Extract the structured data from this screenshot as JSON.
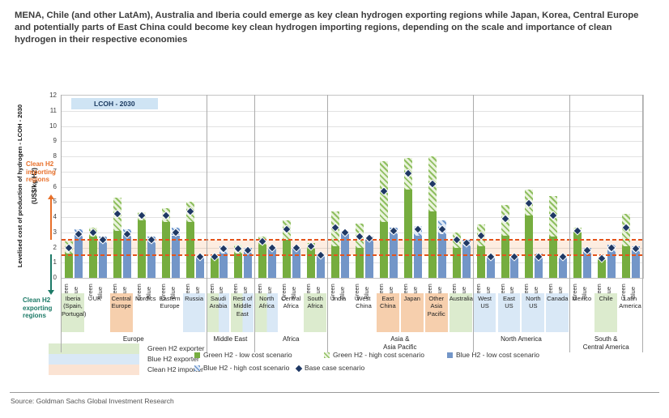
{
  "title": "MENA, Chile (and other LatAm), Australia and Iberia could emerge as key clean hydrogen exporting regions while Japan, Korea, Central Europe and potentially parts of East China could become key clean hydrogen importing regions, depending on the scale and importance of clean hydrogen in their respective economies",
  "source": "Source: Goldman Sachs Global Investment Research",
  "chip_label": "LCOH - 2030",
  "y_axis": {
    "title": "Levelised cost of production of hydrogen - LCOH - 2030",
    "subtitle": "(US$/kg H2)",
    "min": 0,
    "max": 12
  },
  "annotations": {
    "importing": "Clean H2\nimporting\nregions",
    "exporting": "Clean H2\nexporting\nregions"
  },
  "legend_left": [
    {
      "label": "Green H2 exporter",
      "color": "#dcebce"
    },
    {
      "label": "Blue H2 exporter",
      "color": "#d9e8f6"
    },
    {
      "label": "Clean H2 importer",
      "color": "#fbe3d3"
    }
  ],
  "legend_right": [
    {
      "label": "Green H2 - low cost scenario",
      "swatch": "green",
      "row": 1,
      "x": 240
    },
    {
      "label": "Green H2 - high cost scenario",
      "swatch": "hgreen",
      "row": 1,
      "x": 400
    },
    {
      "label": "Blue H2 - low cost scenario",
      "swatch": "blue",
      "row": 1,
      "x": 552
    },
    {
      "label": "Blue H2 - high cost scenario",
      "swatch": "hblue",
      "row": 2,
      "x": 240
    },
    {
      "label": "Base case scenario",
      "swatch": "diamond",
      "row": 2,
      "x": 366
    }
  ],
  "chart_data": {
    "type": "bar",
    "title": "LCOH - 2030",
    "ylabel": "Levelised cost of production of hydrogen - LCOH - 2030 (US$/kg H2)",
    "ylim": [
      0,
      12
    ],
    "grid": true,
    "reference_lines": {
      "export_threshold": 1.5,
      "import_threshold": 2.5
    },
    "bar_tick_labels": [
      "Green",
      "Blue"
    ],
    "groups": [
      {
        "label": "Europe",
        "count": 6
      },
      {
        "label": "Middle East",
        "count": 2
      },
      {
        "label": "Africa",
        "count": 3
      },
      {
        "label": "Asia &\nAsia Pacific",
        "count": 6
      },
      {
        "label": "North America",
        "count": 4
      },
      {
        "label": "South &\nCentral America",
        "count": 3
      }
    ],
    "regions": [
      {
        "name": "Iberia\n(Spain,\nPortugal)",
        "highlight": "green",
        "green": {
          "low": 1.6,
          "high": 2.4,
          "base": 2.0
        },
        "blue": {
          "low": 2.7,
          "high": 3.2,
          "base": 2.9
        }
      },
      {
        "name": "UK",
        "highlight": "none",
        "green": {
          "low": 2.7,
          "high": 3.3,
          "base": 3.0
        },
        "blue": {
          "low": 2.3,
          "high": 2.7,
          "base": 2.5
        }
      },
      {
        "name": "Central\nEurope",
        "highlight": "orange",
        "green": {
          "low": 3.1,
          "high": 5.3,
          "base": 4.2
        },
        "blue": {
          "low": 2.7,
          "high": 3.2,
          "base": 2.9
        }
      },
      {
        "name": "Nordics",
        "highlight": "none",
        "green": {
          "low": 3.8,
          "high": 4.3,
          "base": 4.1
        },
        "blue": {
          "low": 2.3,
          "high": 2.7,
          "base": 2.5
        }
      },
      {
        "name": "Eastern\nEurope",
        "highlight": "none",
        "green": {
          "low": 3.7,
          "high": 4.6,
          "base": 4.1
        },
        "blue": {
          "low": 2.8,
          "high": 3.3,
          "base": 3.0
        }
      },
      {
        "name": "Russia",
        "highlight": "blue",
        "green": {
          "low": 3.7,
          "high": 5.0,
          "base": 4.4
        },
        "blue": {
          "low": 1.3,
          "high": 1.5,
          "base": 1.4
        }
      },
      {
        "name": "Saudi\nArabia",
        "highlight": "greenblue",
        "green": {
          "low": 1.3,
          "high": 1.5,
          "base": 1.4
        },
        "blue": {
          "low": 1.6,
          "high": 2.1,
          "base": 1.9
        }
      },
      {
        "name": "Rest of\nMiddle\nEast",
        "highlight": "greenblue",
        "green": {
          "low": 1.6,
          "high": 2.2,
          "base": 1.9
        },
        "blue": {
          "low": 1.6,
          "high": 2.0,
          "base": 1.8
        }
      },
      {
        "name": "North\nAfrica",
        "highlight": "greenblue",
        "green": {
          "low": 2.2,
          "high": 2.7,
          "base": 2.4
        },
        "blue": {
          "low": 1.9,
          "high": 2.1,
          "base": 2.0
        }
      },
      {
        "name": "Central\nAfrica",
        "highlight": "none",
        "green": {
          "low": 2.5,
          "high": 3.8,
          "base": 3.2
        },
        "blue": {
          "low": 1.9,
          "high": 2.1,
          "base": 2.0
        }
      },
      {
        "name": "South\nAfrica",
        "highlight": "green",
        "green": {
          "low": 1.9,
          "high": 2.3,
          "base": 2.1
        },
        "blue": {
          "low": 1.4,
          "high": 1.6,
          "base": 1.5
        }
      },
      {
        "name": "India",
        "highlight": "none",
        "green": {
          "low": 2.1,
          "high": 4.4,
          "base": 3.3
        },
        "blue": {
          "low": 2.9,
          "high": 3.1,
          "base": 3.0
        }
      },
      {
        "name": "West\nChina",
        "highlight": "none",
        "green": {
          "low": 2.0,
          "high": 3.6,
          "base": 2.7
        },
        "blue": {
          "low": 2.4,
          "high": 2.7,
          "base": 2.6
        }
      },
      {
        "name": "East\nChina",
        "highlight": "orange",
        "green": {
          "low": 3.7,
          "high": 7.7,
          "base": 5.7
        },
        "blue": {
          "low": 2.9,
          "high": 3.3,
          "base": 3.1
        }
      },
      {
        "name": "Japan",
        "highlight": "orange",
        "green": {
          "low": 5.8,
          "high": 7.9,
          "base": 6.9
        },
        "blue": {
          "low": 2.8,
          "high": 3.4,
          "base": 3.2
        }
      },
      {
        "name": "Other\nAsia\nPacific",
        "highlight": "orange",
        "green": {
          "low": 4.4,
          "high": 8.0,
          "base": 6.2
        },
        "blue": {
          "low": 2.9,
          "high": 3.8,
          "base": 3.2
        }
      },
      {
        "name": "Australia",
        "highlight": "green",
        "green": {
          "low": 2.0,
          "high": 3.0,
          "base": 2.5
        },
        "blue": {
          "low": 2.1,
          "high": 2.5,
          "base": 2.3
        }
      },
      {
        "name": "West\nUS",
        "highlight": "blue",
        "green": {
          "low": 2.1,
          "high": 3.5,
          "base": 2.8
        },
        "blue": {
          "low": 1.3,
          "high": 1.5,
          "base": 1.4
        }
      },
      {
        "name": "East\nUS",
        "highlight": "blue",
        "green": {
          "low": 2.8,
          "high": 4.8,
          "base": 3.9
        },
        "blue": {
          "low": 1.3,
          "high": 1.5,
          "base": 1.4
        }
      },
      {
        "name": "North\nUS",
        "highlight": "blue",
        "green": {
          "low": 4.1,
          "high": 5.8,
          "base": 4.9
        },
        "blue": {
          "low": 1.3,
          "high": 1.6,
          "base": 1.4
        }
      },
      {
        "name": "Canada",
        "highlight": "blue",
        "green": {
          "low": 2.7,
          "high": 5.4,
          "base": 4.1
        },
        "blue": {
          "low": 1.3,
          "high": 1.5,
          "base": 1.4
        }
      },
      {
        "name": "Mexico",
        "highlight": "none",
        "green": {
          "low": 3.0,
          "high": 3.3,
          "base": 3.1
        },
        "blue": {
          "low": 1.6,
          "high": 2.0,
          "base": 1.8
        }
      },
      {
        "name": "Chile",
        "highlight": "green",
        "green": {
          "low": 1.2,
          "high": 1.4,
          "base": 1.3
        },
        "blue": {
          "low": 1.7,
          "high": 2.2,
          "base": 2.0
        }
      },
      {
        "name": "Latin\nAmerica",
        "highlight": "none",
        "green": {
          "low": 2.1,
          "high": 4.2,
          "base": 3.3
        },
        "blue": {
          "low": 1.7,
          "high": 2.1,
          "base": 1.9
        }
      }
    ]
  },
  "colors": {
    "green_solid": "#76ad3f",
    "blue_solid": "#7396c8",
    "base_marker": "#1f3864",
    "dashed_line": "#e4531b",
    "import_band": "#f8e3d4",
    "highlight_green": "#dcebce",
    "highlight_blue": "#d9e8f6",
    "highlight_orange": "#f6cfad",
    "chip_bg": "#cfe4f4"
  }
}
